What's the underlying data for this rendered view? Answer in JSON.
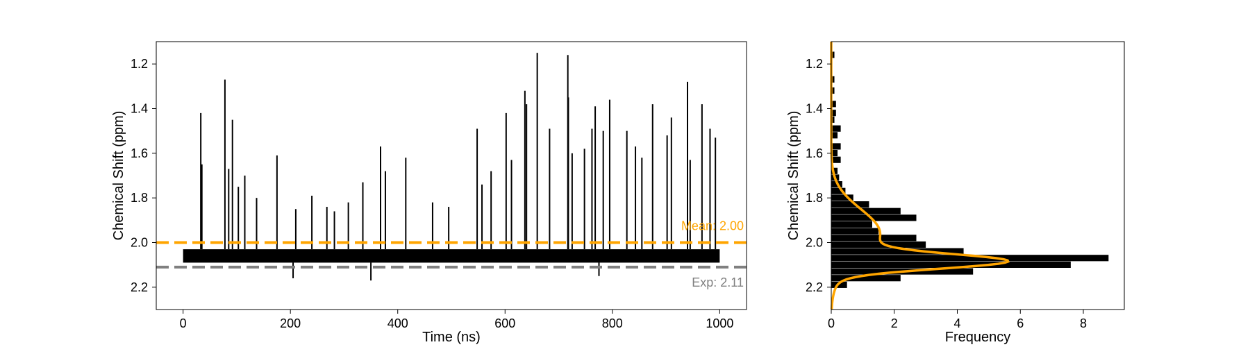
{
  "colors": {
    "trace": "#000000",
    "mean": "#ffa500",
    "exp": "#808080",
    "gaussian": "#ffa500",
    "histogram": "#000000"
  },
  "chart_data": [
    {
      "type": "line",
      "xlabel": "Time (ns)",
      "ylabel": "Chemical Shift (ppm)",
      "xlim": [
        -50,
        1050
      ],
      "ylim": [
        2.3,
        1.1
      ],
      "y_inverted": true,
      "xticks": [
        "0",
        "200",
        "400",
        "600",
        "800",
        "1000"
      ],
      "yticks": [
        "1.2",
        "1.4",
        "1.6",
        "1.8",
        "2.0",
        "2.2"
      ],
      "grid": false,
      "series": [
        {
          "label_on_chart": "",
          "x_range": [
            0,
            1000
          ],
          "baseline_band": [
            2.03,
            2.09
          ],
          "spikes": [
            {
              "x": 33,
              "y": 1.42
            },
            {
              "x": 35,
              "y": 1.65
            },
            {
              "x": 78,
              "y": 1.27
            },
            {
              "x": 85,
              "y": 1.67
            },
            {
              "x": 92,
              "y": 1.45
            },
            {
              "x": 103,
              "y": 1.75
            },
            {
              "x": 115,
              "y": 1.7
            },
            {
              "x": 137,
              "y": 1.8
            },
            {
              "x": 175,
              "y": 1.61
            },
            {
              "x": 210,
              "y": 1.85
            },
            {
              "x": 240,
              "y": 1.79
            },
            {
              "x": 268,
              "y": 1.84
            },
            {
              "x": 282,
              "y": 1.86
            },
            {
              "x": 308,
              "y": 1.82
            },
            {
              "x": 335,
              "y": 1.73
            },
            {
              "x": 368,
              "y": 1.57
            },
            {
              "x": 377,
              "y": 1.68
            },
            {
              "x": 415,
              "y": 1.62
            },
            {
              "x": 465,
              "y": 1.82
            },
            {
              "x": 495,
              "y": 1.84
            },
            {
              "x": 548,
              "y": 1.49
            },
            {
              "x": 557,
              "y": 1.74
            },
            {
              "x": 574,
              "y": 1.68
            },
            {
              "x": 602,
              "y": 1.42
            },
            {
              "x": 612,
              "y": 1.63
            },
            {
              "x": 637,
              "y": 1.32
            },
            {
              "x": 640,
              "y": 1.38
            },
            {
              "x": 660,
              "y": 1.15
            },
            {
              "x": 683,
              "y": 1.49
            },
            {
              "x": 717,
              "y": 1.16
            },
            {
              "x": 718,
              "y": 1.35
            },
            {
              "x": 725,
              "y": 1.6
            },
            {
              "x": 748,
              "y": 1.58
            },
            {
              "x": 762,
              "y": 1.49
            },
            {
              "x": 768,
              "y": 1.39
            },
            {
              "x": 783,
              "y": 1.5
            },
            {
              "x": 795,
              "y": 1.36
            },
            {
              "x": 827,
              "y": 1.5
            },
            {
              "x": 843,
              "y": 1.57
            },
            {
              "x": 855,
              "y": 1.62
            },
            {
              "x": 875,
              "y": 1.38
            },
            {
              "x": 902,
              "y": 1.52
            },
            {
              "x": 910,
              "y": 1.44
            },
            {
              "x": 940,
              "y": 1.28
            },
            {
              "x": 945,
              "y": 1.63
            },
            {
              "x": 967,
              "y": 1.38
            },
            {
              "x": 982,
              "y": 1.49
            },
            {
              "x": 992,
              "y": 1.53
            },
            {
              "x": 350,
              "y": 2.17
            },
            {
              "x": 205,
              "y": 2.16
            },
            {
              "x": 775,
              "y": 2.15
            }
          ]
        }
      ],
      "hlines": [
        {
          "y": 2.0,
          "label": "Mean: 2.00",
          "color": "#ffa500",
          "style": "dashed"
        },
        {
          "y": 2.11,
          "label": "Exp: 2.11",
          "color": "#808080",
          "style": "dashed"
        }
      ]
    },
    {
      "type": "bar",
      "orientation": "horizontal",
      "xlabel": "Frequency",
      "ylabel": "Chemical Shift (ppm)",
      "xlim": [
        0,
        9.3
      ],
      "ylim": [
        2.3,
        1.1
      ],
      "y_inverted": true,
      "xticks": [
        "0",
        "2",
        "4",
        "6",
        "8"
      ],
      "yticks": [
        "1.2",
        "1.4",
        "1.6",
        "1.8",
        "2.0",
        "2.2"
      ],
      "grid": false,
      "bins": [
        {
          "y": 1.16,
          "freq": 0.1
        },
        {
          "y": 1.27,
          "freq": 0.1
        },
        {
          "y": 1.32,
          "freq": 0.1
        },
        {
          "y": 1.38,
          "freq": 0.15
        },
        {
          "y": 1.42,
          "freq": 0.15
        },
        {
          "y": 1.45,
          "freq": 0.1
        },
        {
          "y": 1.49,
          "freq": 0.3
        },
        {
          "y": 1.52,
          "freq": 0.2
        },
        {
          "y": 1.57,
          "freq": 0.3
        },
        {
          "y": 1.6,
          "freq": 0.2
        },
        {
          "y": 1.63,
          "freq": 0.3
        },
        {
          "y": 1.68,
          "freq": 0.2
        },
        {
          "y": 1.71,
          "freq": 0.25
        },
        {
          "y": 1.74,
          "freq": 0.35
        },
        {
          "y": 1.77,
          "freq": 0.45
        },
        {
          "y": 1.8,
          "freq": 0.7
        },
        {
          "y": 1.83,
          "freq": 1.2
        },
        {
          "y": 1.86,
          "freq": 2.2
        },
        {
          "y": 1.89,
          "freq": 2.7
        },
        {
          "y": 1.92,
          "freq": 1.3
        },
        {
          "y": 1.95,
          "freq": 1.5
        },
        {
          "y": 1.98,
          "freq": 2.7
        },
        {
          "y": 2.01,
          "freq": 3.0
        },
        {
          "y": 2.04,
          "freq": 4.2
        },
        {
          "y": 2.07,
          "freq": 8.8
        },
        {
          "y": 2.1,
          "freq": 7.6
        },
        {
          "y": 2.13,
          "freq": 4.5
        },
        {
          "y": 2.16,
          "freq": 2.2
        },
        {
          "y": 2.19,
          "freq": 0.5
        }
      ],
      "gaussian_curve": {
        "color": "#ffa500",
        "components": [
          {
            "amp": 4.8,
            "mu": 2.085,
            "sigma": 0.032
          },
          {
            "amp": 1.55,
            "mu": 1.96,
            "sigma": 0.11
          }
        ]
      }
    }
  ]
}
